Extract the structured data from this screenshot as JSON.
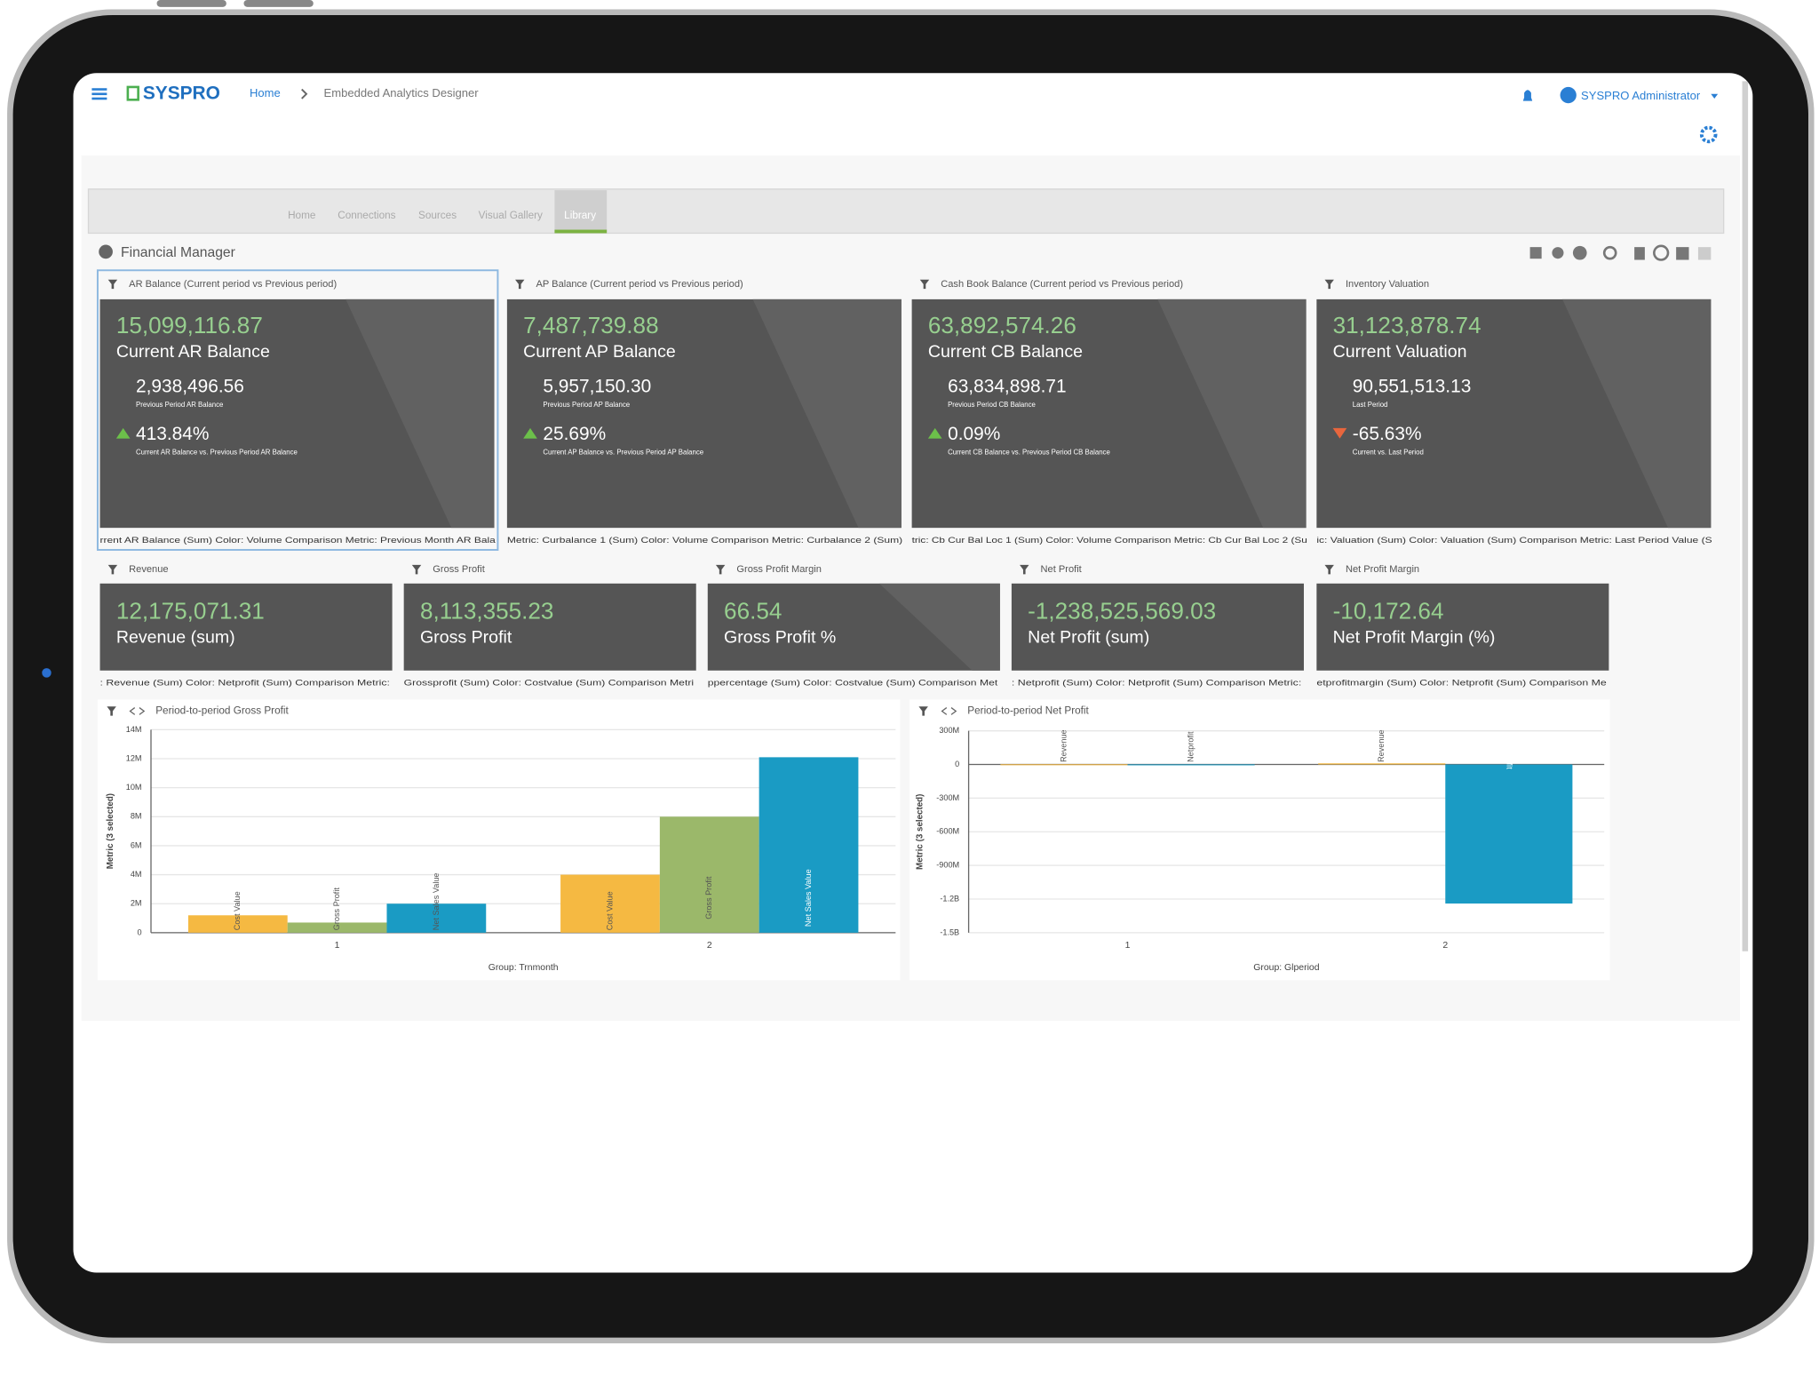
{
  "header": {
    "logo": "SYSPRO",
    "breadcrumb": [
      "Home",
      "Embedded Analytics Designer"
    ],
    "user": "SYSPRO Administrator"
  },
  "tabs": {
    "items": [
      "Home",
      "Connections",
      "Sources",
      "Visual Gallery",
      "Library"
    ],
    "active": 4
  },
  "dashboard": {
    "title": "Financial Manager"
  },
  "kpi_cards": [
    {
      "title": "AR Balance (Current period vs Previous period)",
      "value": "15,099,116.87",
      "value_label": "Current AR Balance",
      "previous": "2,938,496.56",
      "previous_label": "Previous Period AR Balance",
      "change": "413.84%",
      "change_label": "Current AR Balance vs. Previous Period AR Balance",
      "direction": "up",
      "footer": "rrent AR Balance (Sum)    Color: Volume    Comparison Metric: Previous Month AR Bala"
    },
    {
      "title": "AP Balance (Current period vs Previous period)",
      "value": "7,487,739.88",
      "value_label": "Current AP Balance",
      "previous": "5,957,150.30",
      "previous_label": "Previous Period AP Balance",
      "change": "25.69%",
      "change_label": "Current AP Balance vs. Previous Period AP Balance",
      "direction": "up",
      "footer": "Metric: Curbalance 1 (Sum)    Color: Volume    Comparison Metric: Curbalance 2 (Sum)"
    },
    {
      "title": "Cash Book Balance (Current period vs Previous period)",
      "value": "63,892,574.26",
      "value_label": "Current CB Balance",
      "previous": "63,834,898.71",
      "previous_label": "Previous Period CB Balance",
      "change": "0.09%",
      "change_label": "Current CB Balance vs. Previous Period CB Balance",
      "direction": "up",
      "footer": "tric: Cb Cur Bal Loc 1 (Sum)    Color: Volume    Comparison Metric: Cb Cur Bal Loc 2 (Su"
    },
    {
      "title": "Inventory Valuation",
      "value": "31,123,878.74",
      "value_label": "Current Valuation",
      "previous": "90,551,513.13",
      "previous_label": "Last Period",
      "change": "-65.63%",
      "change_label": "Current vs. Last Period",
      "direction": "down",
      "footer": "ic: Valuation (Sum)    Color: Valuation (Sum)    Comparison Metric: Last Period Value (S"
    }
  ],
  "small_cards": [
    {
      "title": "Revenue",
      "value": "12,175,071.31",
      "value_label": "Revenue (sum)",
      "footer": ": Revenue (Sum)    Color: Netprofit (Sum)    Comparison Metric:"
    },
    {
      "title": "Gross Profit",
      "value": "8,113,355.23",
      "value_label": "Gross Profit",
      "footer": "Grossprofit (Sum)    Color: Costvalue (Sum)    Comparison Metri"
    },
    {
      "title": "Gross Profit Margin",
      "value": "66.54",
      "value_label": "Gross Profit %",
      "footer": "ppercentage (Sum)    Color: Costvalue (Sum)    Comparison Met"
    },
    {
      "title": "Net Profit",
      "value": "-1,238,525,569.03",
      "value_label": "Net Profit (sum)",
      "footer": ": Netprofit (Sum)    Color: Netprofit (Sum)    Comparison Metric:"
    },
    {
      "title": "Net Profit Margin",
      "value": "-10,172.64",
      "value_label": "Net Profit Margin (%)",
      "footer": "etprofitmargin (Sum)    Color: Netprofit (Sum)    Comparison Me"
    }
  ],
  "chart_data": [
    {
      "type": "bar",
      "title": "Period-to-period Gross Profit",
      "y_label": "Metric (3 selected)",
      "x_label": "Group: Trnmonth",
      "categories": [
        "1",
        "2"
      ],
      "series": [
        {
          "name": "Cost Value",
          "color": "#f5b942",
          "values": [
            1200000,
            4000000
          ]
        },
        {
          "name": "Gross Profit",
          "color": "#9bb86a",
          "values": [
            700000,
            8000000
          ]
        },
        {
          "name": "Net Sales Value",
          "color": "#1a9bc4",
          "values": [
            2000000,
            12100000
          ]
        }
      ],
      "ylim": [
        0,
        14000000
      ],
      "yticks": [
        0,
        {
          "value": 2000000,
          "label": "2M"
        },
        {
          "value": 4000000,
          "label": "4M"
        },
        {
          "value": 6000000,
          "label": "6M"
        },
        {
          "value": 8000000,
          "label": "8M"
        },
        {
          "value": 10000000,
          "label": "10M"
        },
        {
          "value": 12000000,
          "label": "12M"
        },
        {
          "value": 14000000,
          "label": "14M"
        }
      ],
      "grid": true
    },
    {
      "type": "bar",
      "title": "Period-to-period Net Profit",
      "y_label": "Metric (3 selected)",
      "x_label": "Group: Glperiod",
      "categories": [
        "1",
        "2"
      ],
      "series": [
        {
          "name": "Revenue",
          "color": "#f5b942",
          "values": [
            2000000,
            10000000
          ]
        },
        {
          "name": "Netprofit",
          "color": "#1a9bc4",
          "values": [
            1000000,
            -1240000000
          ]
        }
      ],
      "ylim": [
        -1500000000,
        300000000
      ],
      "yticks": [
        {
          "value": 300000000,
          "label": "300M"
        },
        0,
        {
          "value": -300000000,
          "label": "-300M"
        },
        {
          "value": -600000000,
          "label": "-600M"
        },
        {
          "value": -900000000,
          "label": "-900M"
        },
        {
          "value": -1200000000,
          "label": "-1.2B"
        },
        {
          "value": -1500000000,
          "label": "-1.5B"
        }
      ],
      "grid": true
    }
  ]
}
